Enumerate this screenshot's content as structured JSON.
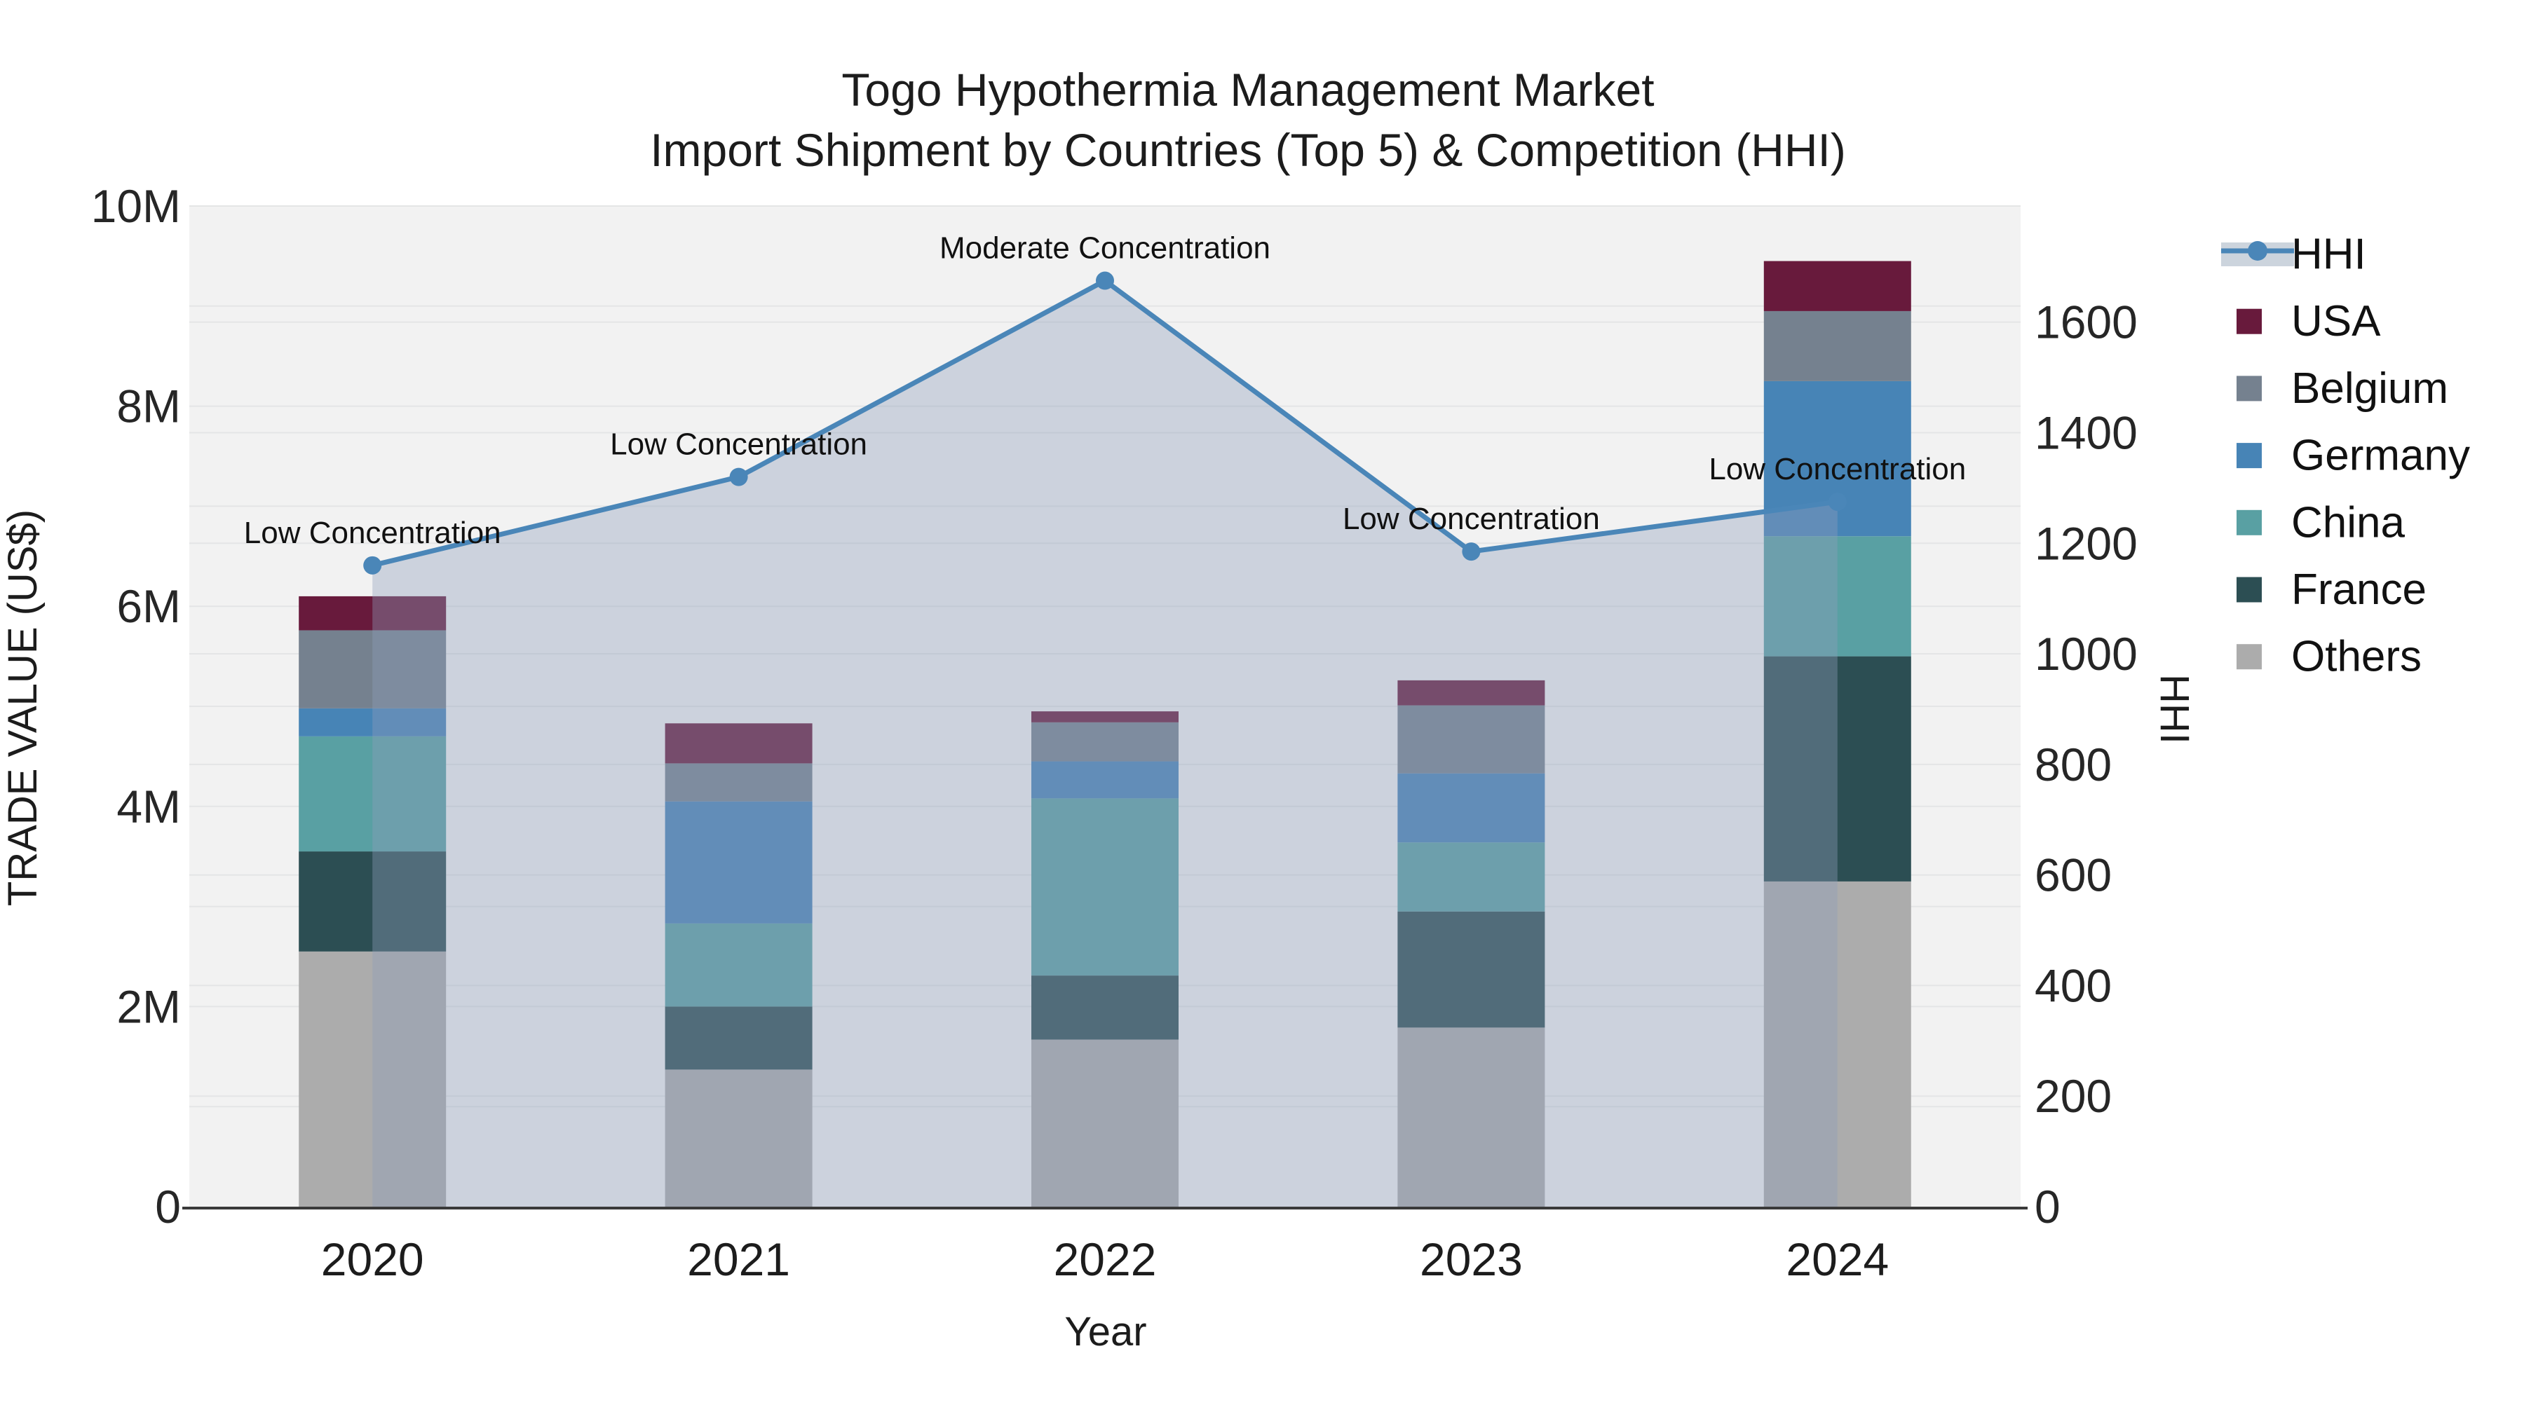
{
  "title_line1": "Togo Hypothermia Management Market",
  "title_line2": "Import Shipment by Countries (Top 5) & Competition (HHI)",
  "axes": {
    "x_title": "Year",
    "y_left_title": "TRADE VALUE (US$)",
    "y_right_title": "HHI",
    "y_left_tick_labels": [
      "0",
      "2M",
      "4M",
      "6M",
      "8M",
      "10M"
    ],
    "y_left_tick_values": [
      0,
      2000000,
      4000000,
      6000000,
      8000000,
      10000000
    ],
    "y_right_tick_labels": [
      "0",
      "200",
      "400",
      "600",
      "800",
      "1000",
      "1200",
      "1400",
      "1600"
    ],
    "y_right_tick_values": [
      0,
      200,
      400,
      600,
      800,
      1000,
      1200,
      1400,
      1600
    ]
  },
  "chart_data": {
    "type": "bar",
    "subtype": "stacked-bars-with-line-overlay",
    "title": "Togo Hypothermia Management Market — Import Shipment by Countries (Top 5) & Competition (HHI)",
    "xlabel": "Year",
    "ylabel_left": "TRADE VALUE (US$)",
    "ylabel_right": "HHI",
    "categories": [
      "2020",
      "2021",
      "2022",
      "2023",
      "2024"
    ],
    "ylim_left": [
      0,
      10000000
    ],
    "ylim_right": [
      0,
      1810
    ],
    "grid": true,
    "legend_position": "right",
    "stack_order_bottom_to_top": [
      "Others",
      "France",
      "China",
      "Germany",
      "Belgium",
      "USA"
    ],
    "series": [
      {
        "name": "USA",
        "color": "#681a3c",
        "values": [
          340000,
          400000,
          110000,
          250000,
          500000
        ]
      },
      {
        "name": "Belgium",
        "color": "#75818f",
        "values": [
          780000,
          380000,
          390000,
          680000,
          700000
        ]
      },
      {
        "name": "Germany",
        "color": "#4784b6",
        "values": [
          280000,
          1220000,
          370000,
          690000,
          1550000
        ]
      },
      {
        "name": "China",
        "color": "#59a0a3",
        "values": [
          1150000,
          830000,
          1770000,
          690000,
          1200000
        ]
      },
      {
        "name": "France",
        "color": "#2c4e53",
        "values": [
          1000000,
          630000,
          640000,
          1160000,
          2250000
        ]
      },
      {
        "name": "Others",
        "color": "#acacac",
        "values": [
          2550000,
          1370000,
          1670000,
          1790000,
          3250000
        ]
      }
    ],
    "line_series": {
      "name": "HHI",
      "axis": "right",
      "color": "#4a86b8",
      "area_fill": "rgba(141,158,186,0.38)",
      "values": [
        1160,
        1320,
        1675,
        1185,
        1275
      ]
    },
    "annotations": [
      {
        "category": "2020",
        "text": "Low Concentration"
      },
      {
        "category": "2021",
        "text": "Low Concentration"
      },
      {
        "category": "2022",
        "text": "Moderate Concentration"
      },
      {
        "category": "2023",
        "text": "Low Concentration"
      },
      {
        "category": "2024",
        "text": "Low Concentration"
      }
    ]
  },
  "legend": {
    "entries": [
      {
        "label": "HHI",
        "type": "line",
        "color": "#4a86b8",
        "band_color": "#ccd4dd"
      },
      {
        "label": "USA",
        "type": "swatch",
        "color": "#681a3c"
      },
      {
        "label": "Belgium",
        "type": "swatch",
        "color": "#75818f"
      },
      {
        "label": "Germany",
        "type": "swatch",
        "color": "#4784b6"
      },
      {
        "label": "China",
        "type": "swatch",
        "color": "#59a0a3"
      },
      {
        "label": "France",
        "type": "swatch",
        "color": "#2c4e53"
      },
      {
        "label": "Others",
        "type": "swatch",
        "color": "#acacac"
      }
    ]
  },
  "colors": {
    "plot_bg": "#f2f2f2",
    "grid": "#e4e5e6",
    "axis_line": "#3a3a3a",
    "text": "#1c1c1c"
  }
}
